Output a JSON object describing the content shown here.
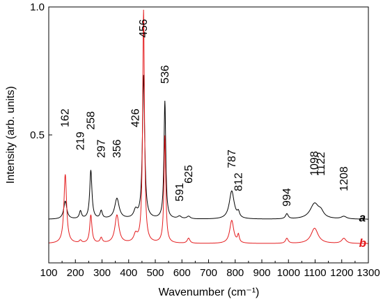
{
  "chart_data": {
    "type": "line",
    "xlabel": "Wavenumber (cm⁻¹)",
    "ylabel": "Intensity (arb. units)",
    "xlim": [
      100,
      1300
    ],
    "ylim": [
      0.0,
      1.0
    ],
    "x_ticks": [
      100,
      200,
      300,
      400,
      500,
      600,
      700,
      800,
      900,
      1000,
      1100,
      1200,
      1300
    ],
    "x_tick_labels": [
      "100",
      "200",
      "300",
      "400",
      "500",
      "600",
      "700",
      "800",
      "900",
      "1000",
      "1100",
      "1200",
      "1300"
    ],
    "y_ticks": [
      0.5,
      1.0
    ],
    "y_tick_labels": [
      "0.5",
      "1.0"
    ],
    "grid": false,
    "series": [
      {
        "name": "a",
        "color": "#000000",
        "baseline": 0.17,
        "peaks": [
          {
            "x": 162,
            "h": 0.07,
            "w": 7
          },
          {
            "x": 219,
            "h": 0.03,
            "w": 5
          },
          {
            "x": 258,
            "h": 0.19,
            "w": 5
          },
          {
            "x": 297,
            "h": 0.03,
            "w": 5
          },
          {
            "x": 356,
            "h": 0.08,
            "w": 10
          },
          {
            "x": 426,
            "h": 0.03,
            "w": 8
          },
          {
            "x": 456,
            "h": 0.56,
            "w": 5
          },
          {
            "x": 536,
            "h": 0.46,
            "w": 4
          },
          {
            "x": 591,
            "h": 0.01,
            "w": 8
          },
          {
            "x": 625,
            "h": 0.01,
            "w": 8
          },
          {
            "x": 787,
            "h": 0.11,
            "w": 11
          },
          {
            "x": 812,
            "h": 0.02,
            "w": 5
          },
          {
            "x": 994,
            "h": 0.02,
            "w": 6
          },
          {
            "x": 1098,
            "h": 0.06,
            "w": 20
          },
          {
            "x": 1122,
            "h": 0.02,
            "w": 12
          },
          {
            "x": 1208,
            "h": 0.01,
            "w": 12
          }
        ]
      },
      {
        "name": "b",
        "color": "#e41a1c",
        "baseline": 0.075,
        "peaks": [
          {
            "x": 162,
            "h": 0.27,
            "w": 6
          },
          {
            "x": 219,
            "h": 0.01,
            "w": 5
          },
          {
            "x": 258,
            "h": 0.11,
            "w": 5
          },
          {
            "x": 297,
            "h": 0.02,
            "w": 5
          },
          {
            "x": 356,
            "h": 0.11,
            "w": 9
          },
          {
            "x": 426,
            "h": 0.03,
            "w": 8
          },
          {
            "x": 456,
            "h": 0.91,
            "w": 4
          },
          {
            "x": 536,
            "h": 0.42,
            "w": 4
          },
          {
            "x": 625,
            "h": 0.02,
            "w": 6
          },
          {
            "x": 787,
            "h": 0.09,
            "w": 9
          },
          {
            "x": 812,
            "h": 0.03,
            "w": 4
          },
          {
            "x": 994,
            "h": 0.02,
            "w": 6
          },
          {
            "x": 1098,
            "h": 0.06,
            "w": 16
          },
          {
            "x": 1208,
            "h": 0.02,
            "w": 10
          }
        ]
      }
    ],
    "annotations": [
      {
        "text": "162",
        "x": 162,
        "y": 0.53
      },
      {
        "text": "219",
        "x": 219,
        "y": 0.44
      },
      {
        "text": "258",
        "x": 258,
        "y": 0.52
      },
      {
        "text": "297",
        "x": 297,
        "y": 0.41
      },
      {
        "text": "356",
        "x": 356,
        "y": 0.41
      },
      {
        "text": "426",
        "x": 426,
        "y": 0.53
      },
      {
        "text": "456",
        "x": 456,
        "y": 0.88
      },
      {
        "text": "536",
        "x": 536,
        "y": 0.7
      },
      {
        "text": "591",
        "x": 591,
        "y": 0.24
      },
      {
        "text": "625",
        "x": 625,
        "y": 0.31
      },
      {
        "text": "787",
        "x": 787,
        "y": 0.37
      },
      {
        "text": "812",
        "x": 812,
        "y": 0.28
      },
      {
        "text": "994",
        "x": 994,
        "y": 0.22
      },
      {
        "text": "1098",
        "x": 1098,
        "y": 0.34
      },
      {
        "text": "1122",
        "x": 1122,
        "y": 0.34
      },
      {
        "text": "1208",
        "x": 1208,
        "y": 0.28
      }
    ],
    "trace_labels": [
      {
        "text": "a",
        "color": "#000000",
        "x": 1265,
        "y": 0.17
      },
      {
        "text": "b",
        "color": "#e41a1c",
        "x": 1265,
        "y": 0.07
      }
    ]
  }
}
